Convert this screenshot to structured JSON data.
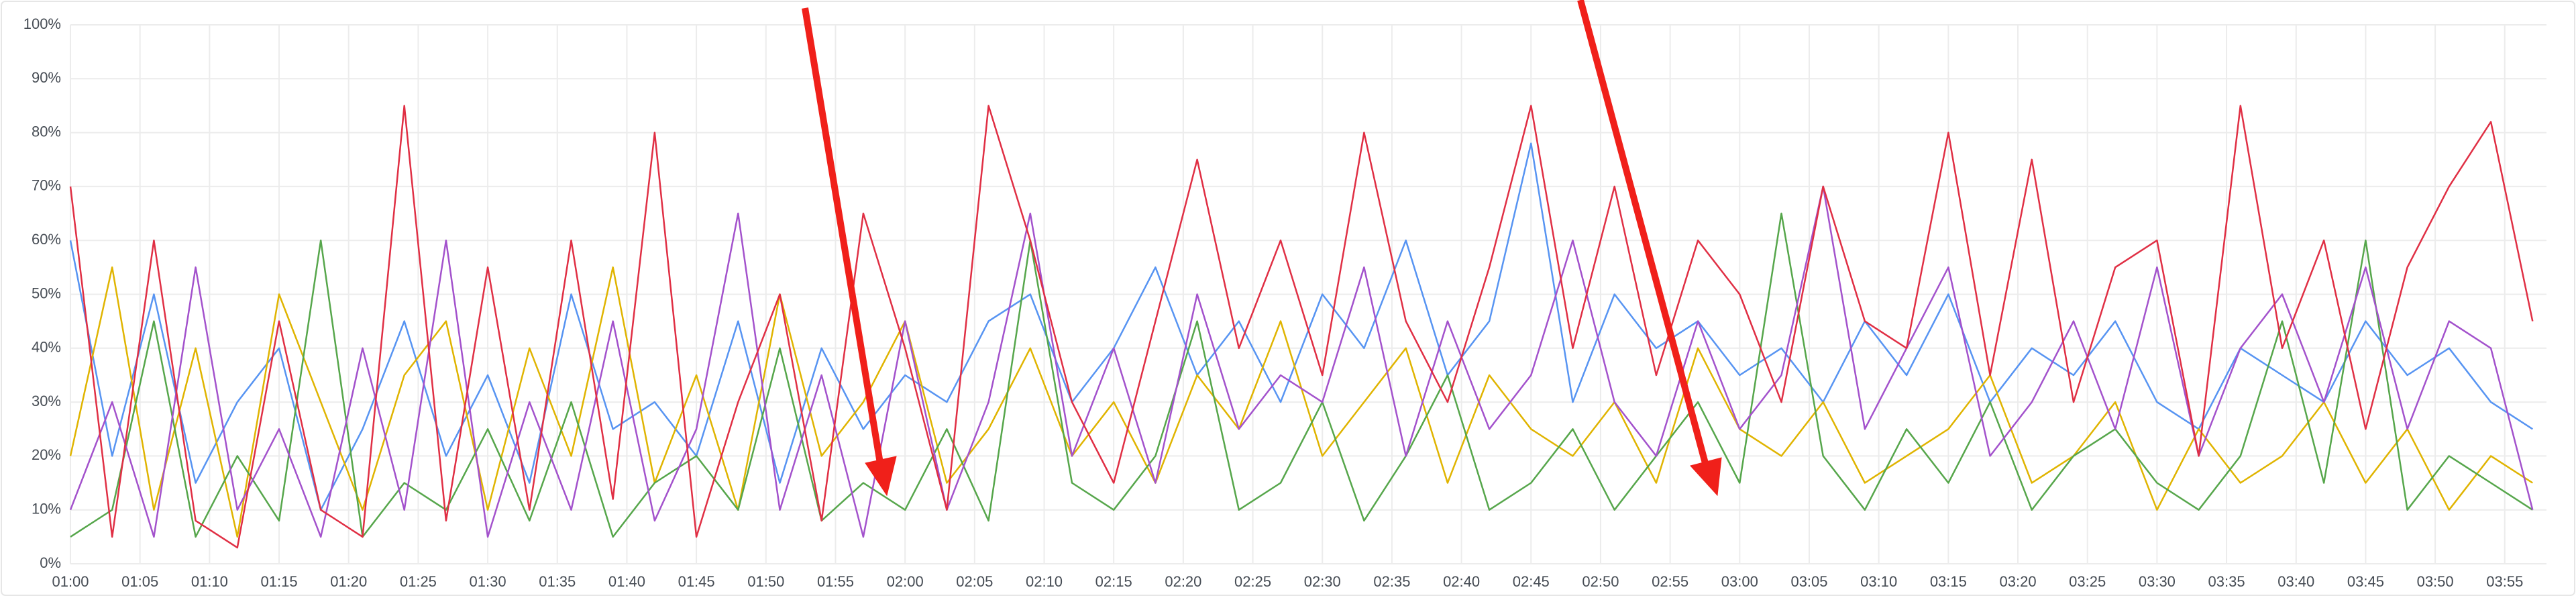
{
  "chart_data": {
    "type": "line",
    "x": [
      60,
      63,
      66,
      69,
      72,
      75,
      78,
      81,
      84,
      87,
      90,
      93,
      96,
      99,
      102,
      105,
      108,
      111,
      114,
      117,
      120,
      123,
      126,
      129,
      132,
      135,
      138,
      141,
      144,
      147,
      150,
      153,
      156,
      159,
      162,
      165,
      168,
      171,
      174,
      177,
      180,
      183,
      186,
      189,
      192,
      195,
      198,
      201,
      204,
      207,
      210,
      213,
      216,
      219,
      222,
      225,
      228,
      231,
      234,
      237
    ],
    "series": [
      {
        "color": "#5794f2",
        "values": [
          60,
          20,
          50,
          15,
          30,
          40,
          10,
          25,
          45,
          20,
          35,
          15,
          50,
          25,
          30,
          20,
          45,
          15,
          40,
          25,
          35,
          30,
          45,
          50,
          30,
          40,
          55,
          35,
          45,
          30,
          50,
          40,
          60,
          35,
          45,
          78,
          30,
          50,
          40,
          45,
          35,
          40,
          30,
          45,
          35,
          50,
          30,
          40,
          35,
          45,
          30,
          25,
          40,
          35,
          30,
          45,
          35,
          40,
          30,
          25
        ]
      },
      {
        "color": "#e0b400",
        "values": [
          20,
          55,
          10,
          40,
          5,
          50,
          30,
          10,
          35,
          45,
          10,
          40,
          20,
          55,
          15,
          35,
          10,
          50,
          20,
          30,
          45,
          15,
          25,
          40,
          20,
          30,
          15,
          35,
          25,
          45,
          20,
          30,
          40,
          15,
          35,
          25,
          20,
          30,
          15,
          40,
          25,
          20,
          30,
          15,
          20,
          25,
          35,
          15,
          20,
          30,
          10,
          25,
          15,
          20,
          30,
          15,
          25,
          10,
          20,
          15
        ]
      },
      {
        "color": "#56a64b",
        "values": [
          5,
          10,
          45,
          5,
          20,
          8,
          60,
          5,
          15,
          10,
          25,
          8,
          30,
          5,
          15,
          20,
          10,
          40,
          8,
          15,
          10,
          25,
          8,
          60,
          15,
          10,
          20,
          45,
          10,
          15,
          30,
          8,
          20,
          35,
          10,
          15,
          25,
          10,
          20,
          30,
          15,
          65,
          20,
          10,
          25,
          15,
          30,
          10,
          20,
          25,
          15,
          10,
          20,
          45,
          15,
          60,
          10,
          20,
          15,
          10
        ]
      },
      {
        "color": "#a352cc",
        "values": [
          10,
          30,
          5,
          55,
          10,
          25,
          5,
          40,
          10,
          60,
          5,
          30,
          10,
          45,
          8,
          25,
          65,
          10,
          35,
          5,
          45,
          10,
          30,
          65,
          20,
          40,
          15,
          50,
          25,
          35,
          30,
          55,
          20,
          45,
          25,
          35,
          60,
          30,
          20,
          45,
          25,
          35,
          70,
          25,
          40,
          55,
          20,
          30,
          45,
          25,
          55,
          20,
          40,
          50,
          30,
          55,
          25,
          45,
          40,
          10
        ]
      },
      {
        "color": "#e02f44",
        "values": [
          70,
          5,
          60,
          8,
          3,
          45,
          10,
          5,
          85,
          8,
          55,
          10,
          60,
          12,
          80,
          5,
          30,
          50,
          8,
          65,
          40,
          10,
          85,
          60,
          30,
          15,
          45,
          75,
          40,
          60,
          35,
          80,
          45,
          30,
          55,
          85,
          40,
          70,
          35,
          60,
          50,
          30,
          70,
          45,
          40,
          80,
          35,
          75,
          30,
          55,
          60,
          20,
          85,
          40,
          60,
          25,
          55,
          70,
          82,
          45
        ]
      }
    ],
    "xlim": [
      60,
      238
    ],
    "xticks": [
      {
        "value": 60,
        "label": "01:00"
      },
      {
        "value": 65,
        "label": "01:05"
      },
      {
        "value": 70,
        "label": "01:10"
      },
      {
        "value": 75,
        "label": "01:15"
      },
      {
        "value": 80,
        "label": "01:20"
      },
      {
        "value": 85,
        "label": "01:25"
      },
      {
        "value": 90,
        "label": "01:30"
      },
      {
        "value": 95,
        "label": "01:35"
      },
      {
        "value": 100,
        "label": "01:40"
      },
      {
        "value": 105,
        "label": "01:45"
      },
      {
        "value": 110,
        "label": "01:50"
      },
      {
        "value": 115,
        "label": "01:55"
      },
      {
        "value": 120,
        "label": "02:00"
      },
      {
        "value": 125,
        "label": "02:05"
      },
      {
        "value": 130,
        "label": "02:10"
      },
      {
        "value": 135,
        "label": "02:15"
      },
      {
        "value": 140,
        "label": "02:20"
      },
      {
        "value": 145,
        "label": "02:25"
      },
      {
        "value": 150,
        "label": "02:30"
      },
      {
        "value": 155,
        "label": "02:35"
      },
      {
        "value": 160,
        "label": "02:40"
      },
      {
        "value": 165,
        "label": "02:45"
      },
      {
        "value": 170,
        "label": "02:50"
      },
      {
        "value": 175,
        "label": "02:55"
      },
      {
        "value": 180,
        "label": "03:00"
      },
      {
        "value": 185,
        "label": "03:05"
      },
      {
        "value": 190,
        "label": "03:10"
      },
      {
        "value": 195,
        "label": "03:15"
      },
      {
        "value": 200,
        "label": "03:20"
      },
      {
        "value": 205,
        "label": "03:25"
      },
      {
        "value": 210,
        "label": "03:30"
      },
      {
        "value": 215,
        "label": "03:35"
      },
      {
        "value": 220,
        "label": "03:40"
      },
      {
        "value": 225,
        "label": "03:45"
      },
      {
        "value": 230,
        "label": "03:50"
      },
      {
        "value": 235,
        "label": "03:55"
      }
    ],
    "ylim": [
      0,
      100
    ],
    "yticks": [
      {
        "value": 0,
        "label": "0%"
      },
      {
        "value": 10,
        "label": "10%"
      },
      {
        "value": 20,
        "label": "20%"
      },
      {
        "value": 30,
        "label": "30%"
      },
      {
        "value": 40,
        "label": "40%"
      },
      {
        "value": 50,
        "label": "50%"
      },
      {
        "value": 60,
        "label": "60%"
      },
      {
        "value": 70,
        "label": "70%"
      },
      {
        "value": 80,
        "label": "80%"
      },
      {
        "value": 90,
        "label": "90%"
      },
      {
        "value": 100,
        "label": "100%"
      }
    ],
    "grid": true
  }
}
